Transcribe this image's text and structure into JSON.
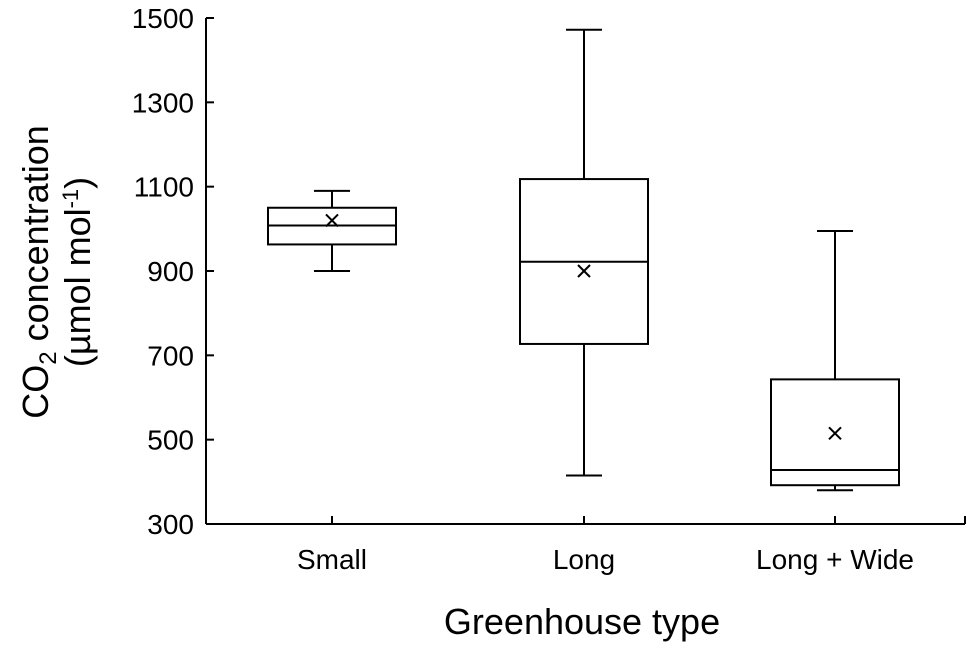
{
  "chart_data": {
    "type": "box",
    "xlabel": "Greenhouse type",
    "ylabel": {
      "line1_prefix": "CO",
      "line1_sub": "2",
      "line1_suffix": " concentration",
      "line2_prefix": "(µmol mol",
      "line2_sup": "-1",
      "line2_suffix": ")"
    },
    "ylim": [
      300,
      1500
    ],
    "yticks": [
      "1500",
      "1300",
      "1100",
      "900",
      "700",
      "500",
      "300"
    ],
    "grid": false,
    "mean_marker": "×",
    "categories": [
      "Small",
      "Long",
      "Long + Wide"
    ],
    "boxes": [
      {
        "category": "Small",
        "min": 900,
        "q1": 963,
        "median": 1008,
        "q3": 1050,
        "max": 1090,
        "mean": 1020
      },
      {
        "category": "Long",
        "min": 415,
        "q1": 727,
        "median": 922,
        "q3": 1118,
        "max": 1472,
        "mean": 900
      },
      {
        "category": "Long + Wide",
        "min": 380,
        "q1": 392,
        "median": 428,
        "q3": 643,
        "max": 995,
        "mean": 515
      }
    ]
  }
}
